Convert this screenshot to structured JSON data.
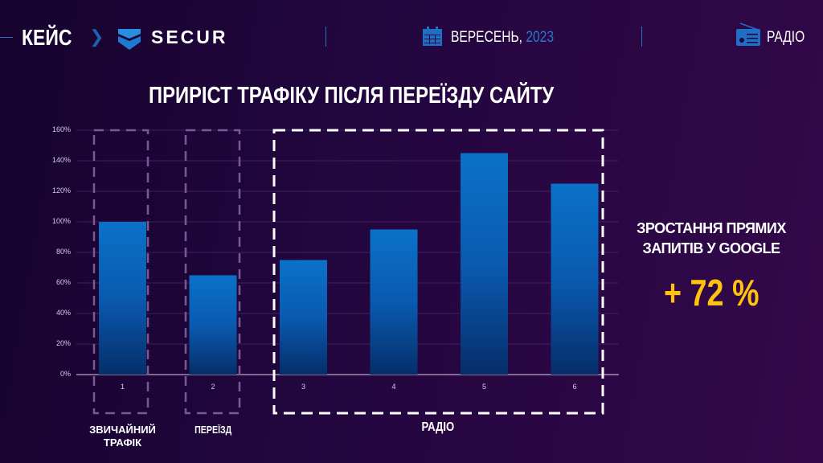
{
  "header": {
    "breadcrumb_case": "КЕЙС",
    "brand": "SECUR",
    "date_month": "ВЕРЕСЕНЬ,",
    "date_year": "2023",
    "category": "РАДІО",
    "icons": [
      "chevron-right-icon",
      "shield-logo-icon",
      "calendar-icon",
      "radio-icon"
    ]
  },
  "colors": {
    "accent": "#1f6fc5",
    "highlight": "#ffc20e",
    "bar_top": "#0a72c8",
    "bar_bottom": "#062e6a"
  },
  "chart_data": {
    "type": "bar",
    "title": "ПРИРІСТ ТРАФІКУ ПІСЛЯ ПЕРЕЇЗДУ САЙТУ",
    "categories": [
      "1",
      "2",
      "3",
      "4",
      "5",
      "6"
    ],
    "values": [
      100,
      65,
      75,
      95,
      145,
      125
    ],
    "ylim": [
      0,
      160
    ],
    "yticks": [
      "0%",
      "20%",
      "40%",
      "60%",
      "80%",
      "100%",
      "120%",
      "140%",
      "160%"
    ],
    "grid": true,
    "groups": [
      {
        "label": "ЗВИЧАЙНИЙ ТРАФІК",
        "categories": [
          "1"
        ]
      },
      {
        "label": "ПЕРЕЇЗД",
        "categories": [
          "2"
        ]
      },
      {
        "label": "РАДІО",
        "categories": [
          "3",
          "4",
          "5",
          "6"
        ]
      }
    ]
  },
  "stat": {
    "label": "ЗРОСТАННЯ ПРЯМИХ ЗАПИТІВ У GOOGLE",
    "value": "+ 72 %"
  }
}
